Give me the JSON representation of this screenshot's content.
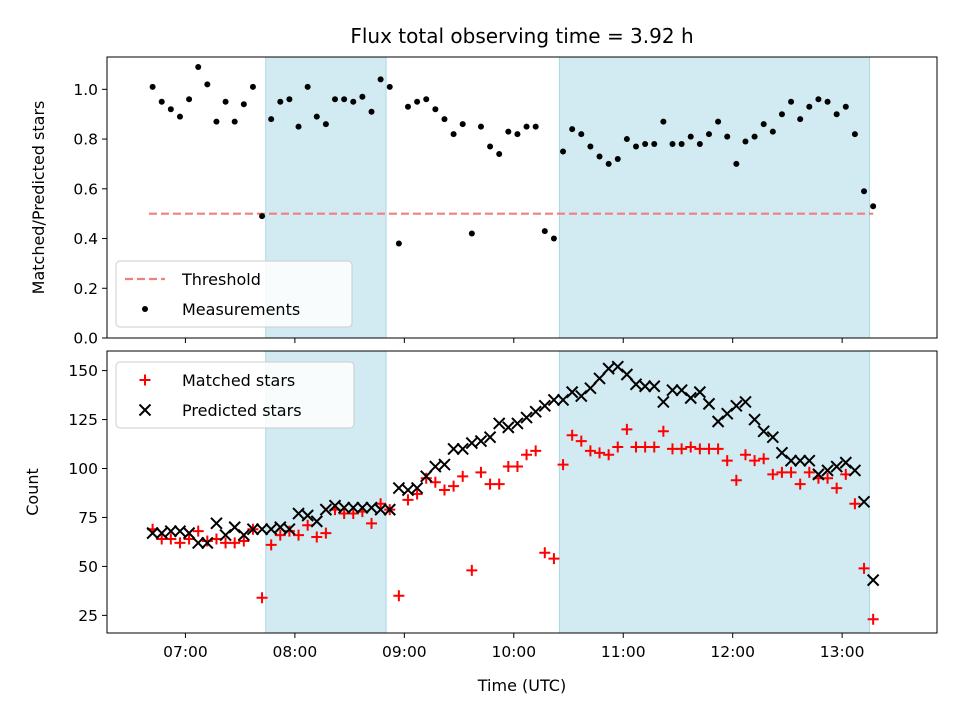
{
  "title": "Flux total observing time = 3.92 h",
  "chart_data": [
    {
      "type": "scatter",
      "ylabel": "Matched/Predicted stars",
      "xlabel": "",
      "xlim": [
        "06:17",
        "13:52"
      ],
      "ylim": [
        0,
        1.13
      ],
      "yticks": [
        "0.0",
        "0.2",
        "0.4",
        "0.6",
        "0.8",
        "1.0"
      ],
      "shaded_intervals": [
        [
          "07:44",
          "08:50"
        ],
        [
          "10:25",
          "13:15"
        ]
      ],
      "shade_color": "#add8e6",
      "legend_placement": "lower-left",
      "legend": [
        "Threshold",
        "Measurements"
      ],
      "threshold": {
        "name": "Threshold",
        "value": 0.5,
        "x_range": [
          "06:40",
          "13:17"
        ],
        "color": "#f08080"
      },
      "series": [
        {
          "name": "Measurements",
          "color": "#000000",
          "marker": "dot",
          "points": [
            [
              "06:42",
              1.01
            ],
            [
              "06:47",
              0.95
            ],
            [
              "06:52",
              0.92
            ],
            [
              "06:57",
              0.89
            ],
            [
              "07:02",
              0.96
            ],
            [
              "07:07",
              1.09
            ],
            [
              "07:12",
              1.02
            ],
            [
              "07:17",
              0.87
            ],
            [
              "07:22",
              0.95
            ],
            [
              "07:27",
              0.87
            ],
            [
              "07:32",
              0.94
            ],
            [
              "07:37",
              1.01
            ],
            [
              "07:42",
              0.49
            ],
            [
              "07:47",
              0.88
            ],
            [
              "07:52",
              0.95
            ],
            [
              "07:57",
              0.96
            ],
            [
              "08:02",
              0.85
            ],
            [
              "08:07",
              1.01
            ],
            [
              "08:12",
              0.89
            ],
            [
              "08:17",
              0.86
            ],
            [
              "08:22",
              0.96
            ],
            [
              "08:27",
              0.96
            ],
            [
              "08:32",
              0.95
            ],
            [
              "08:37",
              0.97
            ],
            [
              "08:42",
              0.91
            ],
            [
              "08:47",
              1.04
            ],
            [
              "08:52",
              1.01
            ],
            [
              "08:57",
              0.38
            ],
            [
              "09:02",
              0.93
            ],
            [
              "09:07",
              0.95
            ],
            [
              "09:12",
              0.96
            ],
            [
              "09:17",
              0.92
            ],
            [
              "09:22",
              0.88
            ],
            [
              "09:27",
              0.82
            ],
            [
              "09:32",
              0.86
            ],
            [
              "09:37",
              0.42
            ],
            [
              "09:42",
              0.85
            ],
            [
              "09:47",
              0.77
            ],
            [
              "09:52",
              0.74
            ],
            [
              "09:57",
              0.83
            ],
            [
              "10:02",
              0.82
            ],
            [
              "10:07",
              0.85
            ],
            [
              "10:12",
              0.85
            ],
            [
              "10:17",
              0.43
            ],
            [
              "10:22",
              0.4
            ],
            [
              "10:27",
              0.75
            ],
            [
              "10:32",
              0.84
            ],
            [
              "10:37",
              0.82
            ],
            [
              "10:42",
              0.77
            ],
            [
              "10:47",
              0.73
            ],
            [
              "10:52",
              0.7
            ],
            [
              "10:57",
              0.72
            ],
            [
              "11:02",
              0.8
            ],
            [
              "11:07",
              0.77
            ],
            [
              "11:12",
              0.78
            ],
            [
              "11:17",
              0.78
            ],
            [
              "11:22",
              0.87
            ],
            [
              "11:27",
              0.78
            ],
            [
              "11:32",
              0.78
            ],
            [
              "11:37",
              0.81
            ],
            [
              "11:42",
              0.78
            ],
            [
              "11:47",
              0.82
            ],
            [
              "11:52",
              0.87
            ],
            [
              "11:57",
              0.81
            ],
            [
              "12:02",
              0.7
            ],
            [
              "12:07",
              0.79
            ],
            [
              "12:12",
              0.81
            ],
            [
              "12:17",
              0.86
            ],
            [
              "12:22",
              0.83
            ],
            [
              "12:27",
              0.9
            ],
            [
              "12:32",
              0.95
            ],
            [
              "12:37",
              0.88
            ],
            [
              "12:42",
              0.93
            ],
            [
              "12:47",
              0.96
            ],
            [
              "12:52",
              0.95
            ],
            [
              "12:57",
              0.9
            ],
            [
              "13:02",
              0.93
            ],
            [
              "13:07",
              0.82
            ],
            [
              "13:12",
              0.59
            ],
            [
              "13:17",
              0.53
            ]
          ]
        }
      ]
    },
    {
      "type": "scatter",
      "ylabel": "Count",
      "xlabel": "Time (UTC)",
      "xlim": [
        "06:17",
        "13:52"
      ],
      "ylim": [
        16,
        160
      ],
      "yticks": [
        "25",
        "50",
        "75",
        "100",
        "125",
        "150"
      ],
      "xticks": [
        "07:00",
        "08:00",
        "09:00",
        "10:00",
        "11:00",
        "12:00",
        "13:00"
      ],
      "shaded_intervals": [
        [
          "07:44",
          "08:50"
        ],
        [
          "10:25",
          "13:15"
        ]
      ],
      "shade_color": "#add8e6",
      "legend_placement": "upper-left",
      "legend": [
        "Matched stars",
        "Predicted stars"
      ],
      "series": [
        {
          "name": "Matched stars",
          "color": "#ff0000",
          "marker": "plus",
          "points": [
            [
              "06:42",
              69
            ],
            [
              "06:47",
              64
            ],
            [
              "06:52",
              64
            ],
            [
              "06:57",
              62
            ],
            [
              "07:02",
              64
            ],
            [
              "07:07",
              68
            ],
            [
              "07:12",
              63
            ],
            [
              "07:17",
              64
            ],
            [
              "07:22",
              62
            ],
            [
              "07:27",
              62
            ],
            [
              "07:32",
              63
            ],
            [
              "07:37",
              69
            ],
            [
              "07:42",
              34
            ],
            [
              "07:47",
              61
            ],
            [
              "07:52",
              66
            ],
            [
              "07:57",
              68
            ],
            [
              "08:02",
              66
            ],
            [
              "08:07",
              71
            ],
            [
              "08:12",
              65
            ],
            [
              "08:17",
              67
            ],
            [
              "08:22",
              79
            ],
            [
              "08:27",
              77
            ],
            [
              "08:32",
              77
            ],
            [
              "08:37",
              78
            ],
            [
              "08:42",
              72
            ],
            [
              "08:47",
              82
            ],
            [
              "08:52",
              79
            ],
            [
              "08:57",
              35
            ],
            [
              "09:02",
              84
            ],
            [
              "09:07",
              87
            ],
            [
              "09:12",
              95
            ],
            [
              "09:17",
              93
            ],
            [
              "09:22",
              89
            ],
            [
              "09:27",
              91
            ],
            [
              "09:32",
              96
            ],
            [
              "09:37",
              48
            ],
            [
              "09:42",
              98
            ],
            [
              "09:47",
              92
            ],
            [
              "09:52",
              92
            ],
            [
              "09:57",
              101
            ],
            [
              "10:02",
              101
            ],
            [
              "10:07",
              107
            ],
            [
              "10:12",
              109
            ],
            [
              "10:17",
              57
            ],
            [
              "10:22",
              54
            ],
            [
              "10:27",
              102
            ],
            [
              "10:32",
              117
            ],
            [
              "10:37",
              114
            ],
            [
              "10:42",
              109
            ],
            [
              "10:47",
              108
            ],
            [
              "10:52",
              107
            ],
            [
              "10:57",
              111
            ],
            [
              "11:02",
              120
            ],
            [
              "11:07",
              111
            ],
            [
              "11:12",
              111
            ],
            [
              "11:17",
              111
            ],
            [
              "11:22",
              119
            ],
            [
              "11:27",
              110
            ],
            [
              "11:32",
              110
            ],
            [
              "11:37",
              111
            ],
            [
              "11:42",
              110
            ],
            [
              "11:47",
              110
            ],
            [
              "11:52",
              110
            ],
            [
              "11:57",
              104
            ],
            [
              "12:02",
              94
            ],
            [
              "12:07",
              107
            ],
            [
              "12:12",
              104
            ],
            [
              "12:17",
              105
            ],
            [
              "12:22",
              97
            ],
            [
              "12:27",
              98
            ],
            [
              "12:32",
              98
            ],
            [
              "12:37",
              92
            ],
            [
              "12:42",
              98
            ],
            [
              "12:47",
              95
            ],
            [
              "12:52",
              95
            ],
            [
              "12:57",
              90
            ],
            [
              "13:02",
              97
            ],
            [
              "13:07",
              82
            ],
            [
              "13:12",
              49
            ],
            [
              "13:17",
              23
            ]
          ]
        },
        {
          "name": "Predicted stars",
          "color": "#000000",
          "marker": "x",
          "points": [
            [
              "06:42",
              67
            ],
            [
              "06:47",
              67
            ],
            [
              "06:52",
              68
            ],
            [
              "06:57",
              68
            ],
            [
              "07:02",
              67
            ],
            [
              "07:07",
              62
            ],
            [
              "07:12",
              62
            ],
            [
              "07:17",
              72
            ],
            [
              "07:22",
              66
            ],
            [
              "07:27",
              70
            ],
            [
              "07:32",
              66
            ],
            [
              "07:37",
              69
            ],
            [
              "07:42",
              69
            ],
            [
              "07:47",
              69
            ],
            [
              "07:52",
              70
            ],
            [
              "07:57",
              69
            ],
            [
              "08:02",
              77
            ],
            [
              "08:07",
              76
            ],
            [
              "08:12",
              73
            ],
            [
              "08:17",
              79
            ],
            [
              "08:22",
              81
            ],
            [
              "08:27",
              80
            ],
            [
              "08:32",
              80
            ],
            [
              "08:37",
              80
            ],
            [
              "08:42",
              80
            ],
            [
              "08:47",
              79
            ],
            [
              "08:52",
              79
            ],
            [
              "08:57",
              90
            ],
            [
              "09:02",
              89
            ],
            [
              "09:07",
              90
            ],
            [
              "09:12",
              96
            ],
            [
              "09:17",
              101
            ],
            [
              "09:22",
              102
            ],
            [
              "09:27",
              110
            ],
            [
              "09:32",
              110
            ],
            [
              "09:37",
              113
            ],
            [
              "09:42",
              114
            ],
            [
              "09:47",
              116
            ],
            [
              "09:52",
              123
            ],
            [
              "09:57",
              121
            ],
            [
              "10:02",
              123
            ],
            [
              "10:07",
              126
            ],
            [
              "10:12",
              129
            ],
            [
              "10:17",
              132
            ],
            [
              "10:22",
              135
            ],
            [
              "10:27",
              135
            ],
            [
              "10:32",
              139
            ],
            [
              "10:37",
              137
            ],
            [
              "10:42",
              141
            ],
            [
              "10:47",
              146
            ],
            [
              "10:52",
              151
            ],
            [
              "10:57",
              152
            ],
            [
              "11:02",
              148
            ],
            [
              "11:07",
              143
            ],
            [
              "11:12",
              142
            ],
            [
              "11:17",
              142
            ],
            [
              "11:22",
              134
            ],
            [
              "11:27",
              140
            ],
            [
              "11:32",
              140
            ],
            [
              "11:37",
              136
            ],
            [
              "11:42",
              139
            ],
            [
              "11:47",
              133
            ],
            [
              "11:52",
              124
            ],
            [
              "11:57",
              128
            ],
            [
              "12:02",
              132
            ],
            [
              "12:07",
              134
            ],
            [
              "12:12",
              125
            ],
            [
              "12:17",
              119
            ],
            [
              "12:22",
              116
            ],
            [
              "12:27",
              108
            ],
            [
              "12:32",
              104
            ],
            [
              "12:37",
              104
            ],
            [
              "12:42",
              104
            ],
            [
              "12:47",
              97
            ],
            [
              "12:52",
              99
            ],
            [
              "12:57",
              101
            ],
            [
              "13:02",
              103
            ],
            [
              "13:07",
              99
            ],
            [
              "13:12",
              83
            ],
            [
              "13:17",
              43
            ]
          ]
        }
      ]
    }
  ]
}
